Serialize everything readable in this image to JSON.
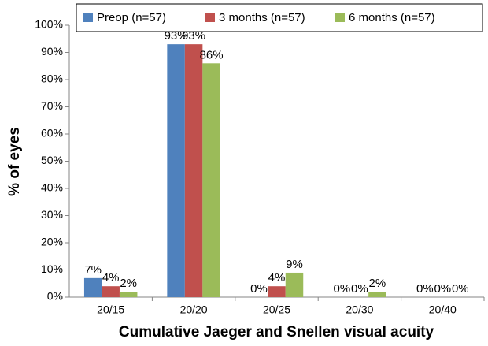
{
  "chart_data": {
    "type": "bar",
    "x_label": "Cumulative Jaeger and Snellen visual acuity",
    "y_label": "% of eyes",
    "categories": [
      "20/15",
      "20/20",
      "20/25",
      "20/30",
      "20/40"
    ],
    "series": [
      {
        "name": "Preop (n=57)",
        "color": "#4f81bd",
        "values": [
          7,
          93,
          0,
          0,
          0
        ],
        "value_labels": [
          "7%",
          "93%",
          "0%",
          "0%",
          "0%"
        ]
      },
      {
        "name": "3 months (n=57)",
        "color": "#c0504d",
        "values": [
          4,
          93,
          4,
          0,
          0
        ],
        "value_labels": [
          "4%",
          "93%",
          "4%",
          "0%",
          "0%"
        ]
      },
      {
        "name": "6 months (n=57)",
        "color": "#9bbb59",
        "values": [
          2,
          86,
          9,
          2,
          0
        ],
        "value_labels": [
          "2%",
          "86%",
          "9%",
          "2%",
          "0%"
        ]
      }
    ],
    "ylim": [
      0,
      100
    ],
    "yticks": [
      {
        "value": 0,
        "label": "0%"
      },
      {
        "value": 10,
        "label": "10%"
      },
      {
        "value": 20,
        "label": "20%"
      },
      {
        "value": 30,
        "label": "30%"
      },
      {
        "value": 40,
        "label": "40%"
      },
      {
        "value": 50,
        "label": "50%"
      },
      {
        "value": 60,
        "label": "60%"
      },
      {
        "value": 70,
        "label": "70%"
      },
      {
        "value": 80,
        "label": "80%"
      },
      {
        "value": 90,
        "label": "90%"
      },
      {
        "value": 100,
        "label": "100%"
      }
    ],
    "legend": "top"
  }
}
